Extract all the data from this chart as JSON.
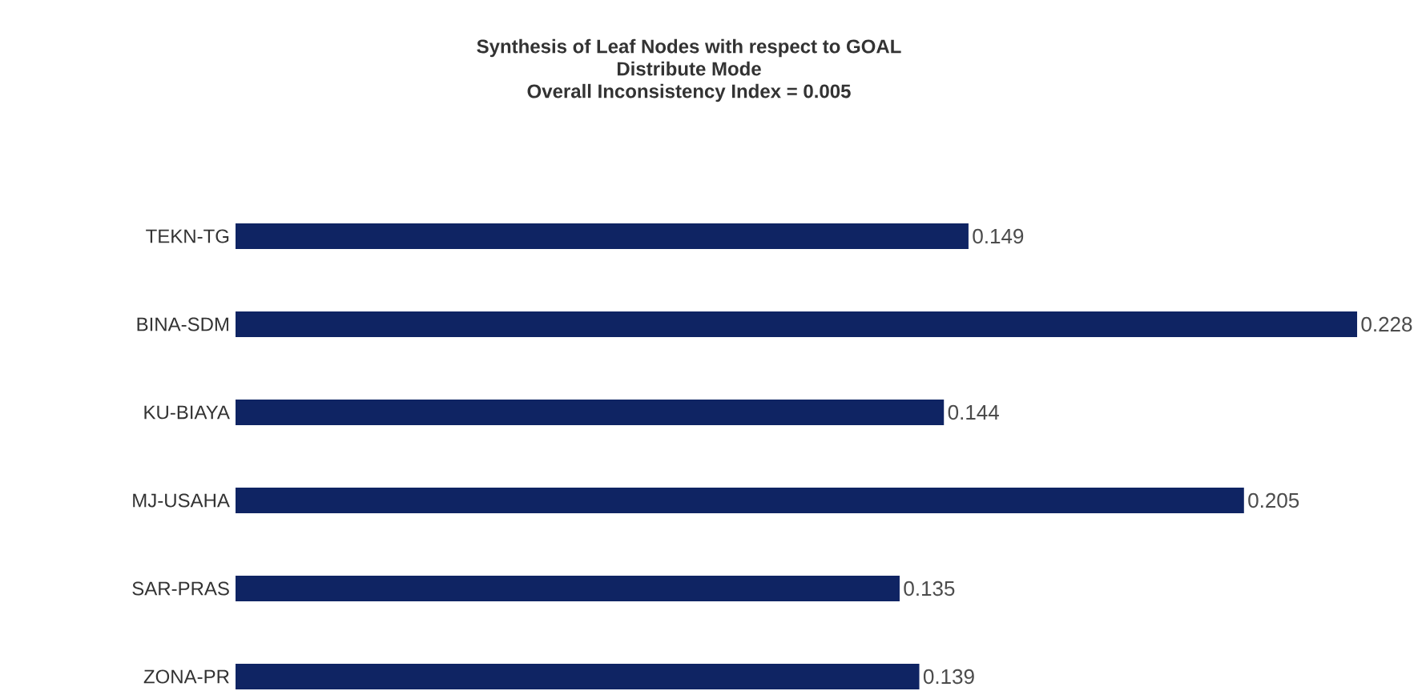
{
  "chart_data": {
    "type": "bar",
    "orientation": "horizontal",
    "title": "Synthesis of Leaf Nodes with respect to GOAL",
    "subtitle": "Distribute Mode",
    "annotations": [
      "Overall Inconsistency Index = 0.005"
    ],
    "categories": [
      "TEKN-TG",
      "BINA-SDM",
      "KU-BIAYA",
      "MJ-USAHA",
      "SAR-PRAS",
      "ZONA-PR"
    ],
    "values": [
      0.149,
      0.228,
      0.144,
      0.205,
      0.135,
      0.139
    ],
    "color": "#0f2463",
    "data_labels": true
  }
}
